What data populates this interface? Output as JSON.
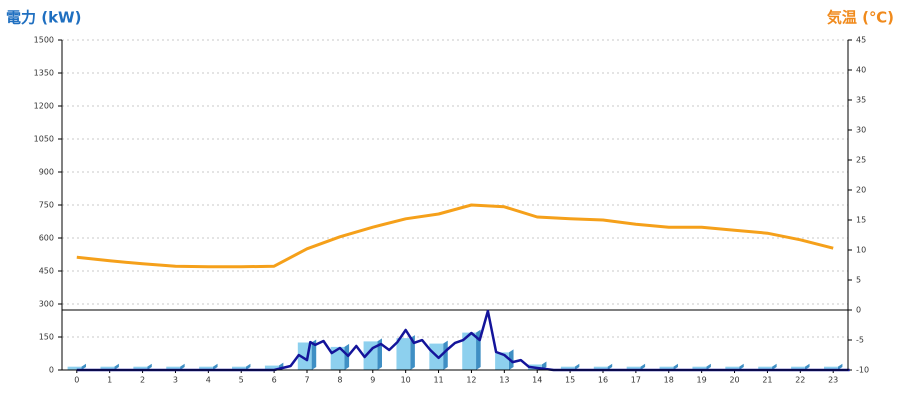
{
  "chart_data": {
    "type": "bar-line",
    "y_title": "電力 (kW)",
    "y2_title": "気温 (℃)",
    "categories": [
      "0",
      "1",
      "2",
      "3",
      "4",
      "5",
      "6",
      "7",
      "8",
      "9",
      "10",
      "11",
      "12",
      "13",
      "14",
      "15",
      "16",
      "17",
      "18",
      "19",
      "20",
      "21",
      "22",
      "23"
    ],
    "xlim": [
      -0.45,
      23.45
    ],
    "ylim": [
      0,
      1500
    ],
    "yticks": [
      0,
      150,
      300,
      450,
      600,
      750,
      900,
      1050,
      1200,
      1350,
      1500
    ],
    "y2lim": [
      -10,
      45
    ],
    "y2ticks": [
      -10,
      -5,
      0,
      5,
      10,
      15,
      20,
      25,
      30,
      35,
      40,
      45
    ],
    "grid": true,
    "reference_line": {
      "axis": "y2",
      "value": 0
    },
    "bars": {
      "color": "#8dd0ee",
      "side_color": "#3f8fc4",
      "values": [
        15,
        15,
        15,
        15,
        15,
        15,
        20,
        125,
        105,
        130,
        145,
        120,
        170,
        80,
        25,
        15,
        15,
        15,
        15,
        15,
        15,
        15,
        15,
        15
      ]
    },
    "series": [
      {
        "kind": "line",
        "color": "#14149a",
        "x": [
          0,
          6,
          6.5,
          6.75,
          7,
          7.1,
          7.25,
          7.5,
          7.75,
          8,
          8.25,
          8.5,
          8.75,
          9,
          9.25,
          9.5,
          9.75,
          10,
          10.25,
          10.5,
          10.75,
          11,
          11.25,
          11.5,
          11.75,
          12,
          12.25,
          12.5,
          12.75,
          13,
          13.25,
          13.5,
          13.75,
          14,
          14.5,
          23.5
        ],
        "values": [
          0,
          0,
          18,
          68,
          45,
          127,
          114,
          132,
          77,
          100,
          64,
          109,
          59,
          100,
          118,
          91,
          127,
          182,
          123,
          136,
          91,
          55,
          91,
          123,
          136,
          168,
          136,
          268,
          82,
          68,
          36,
          45,
          14,
          9,
          0,
          0
        ]
      },
      {
        "kind": "line",
        "axis": "y2",
        "color": "#f5a01a",
        "x": [
          0,
          1,
          2,
          3,
          4,
          5,
          6,
          7,
          8,
          9,
          10,
          11,
          12,
          13,
          14,
          15,
          16,
          17,
          18,
          19,
          20,
          21,
          22,
          23
        ],
        "values": [
          8.8,
          8.2,
          7.7,
          7.3,
          7.2,
          7.2,
          7.3,
          10.2,
          12.2,
          13.8,
          15.2,
          16,
          17.5,
          17.2,
          15.5,
          15.2,
          15,
          14.3,
          13.8,
          13.8,
          13.3,
          12.8,
          11.7,
          10.3
        ]
      }
    ]
  }
}
